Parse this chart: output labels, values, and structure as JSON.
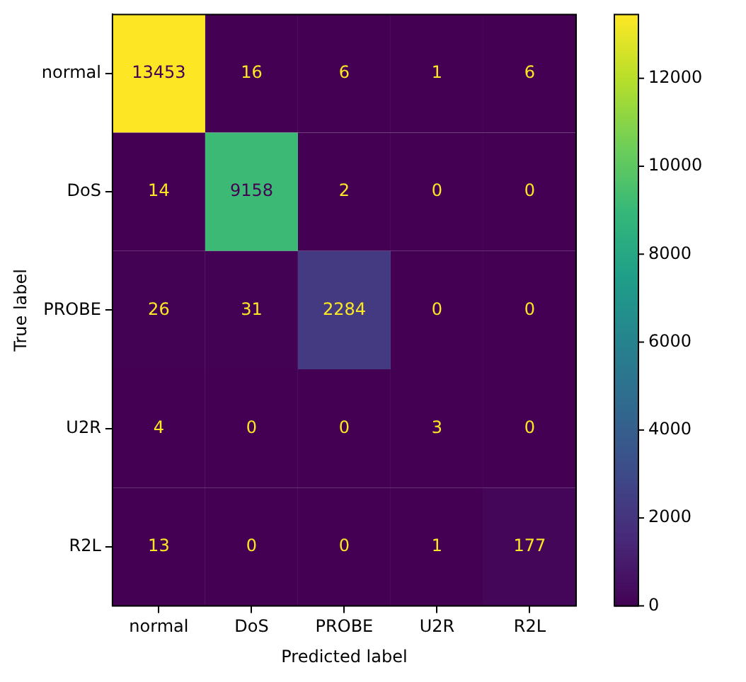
{
  "chart_data": {
    "type": "heatmap",
    "xlabel": "Predicted label",
    "ylabel": "True label",
    "categories": [
      "normal",
      "DoS",
      "PROBE",
      "U2R",
      "R2L"
    ],
    "y_categories": [
      "normal",
      "DoS",
      "PROBE",
      "U2R",
      "R2L"
    ],
    "cells": [
      [
        13453,
        16,
        6,
        1,
        6
      ],
      [
        14,
        9158,
        2,
        0,
        0
      ],
      [
        26,
        31,
        2284,
        0,
        0
      ],
      [
        4,
        0,
        0,
        3,
        0
      ],
      [
        13,
        0,
        0,
        1,
        177
      ]
    ],
    "data_labels": true,
    "clim": [
      0,
      13453
    ],
    "cticks": [
      0,
      2000,
      4000,
      6000,
      8000,
      10000,
      12000
    ],
    "grid": false,
    "legend": false
  }
}
